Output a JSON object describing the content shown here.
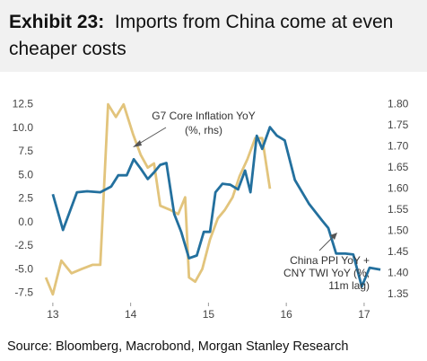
{
  "chart_data": {
    "type": "line",
    "title_label": "Exhibit 23:",
    "title": "Imports from China come at even cheaper costs",
    "source": "Source: Bloomberg, Macrobond, Morgan Stanley Research",
    "annotations": [
      {
        "lines": [
          "G7 Core Inflation YoY",
          "(%, rhs)"
        ]
      },
      {
        "lines": [
          "China PPI YoY +",
          "CNY TWI YoY (%,",
          "11m lag)"
        ]
      }
    ],
    "xlim": [
      12.84,
      17.22
    ],
    "xticks": [
      13,
      14,
      15,
      16,
      17
    ],
    "ylim": [
      -8.5,
      13.3
    ],
    "yticks": [
      12.5,
      {
        "value": 10,
        "label": "10.0"
      },
      7.5,
      {
        "value": 5,
        "label": "5.0"
      },
      2.5,
      {
        "value": 0,
        "label": "0.0"
      },
      -2.5,
      {
        "value": -5,
        "label": "-5.0"
      },
      -7.5
    ],
    "y2lim": [
      1.3305,
      1.8174
    ],
    "y2ticks": [
      {
        "value": 1.8,
        "label": "1.80"
      },
      {
        "value": 1.75,
        "label": "1.75"
      },
      {
        "value": 1.7,
        "label": "1.70"
      },
      {
        "value": 1.65,
        "label": "1.65"
      },
      {
        "value": 1.6,
        "label": "1.60"
      },
      {
        "value": 1.55,
        "label": "1.55"
      },
      {
        "value": 1.5,
        "label": "1.50"
      },
      {
        "value": 1.45,
        "label": "1.45"
      },
      {
        "value": 1.4,
        "label": "1.40"
      },
      {
        "value": 1.35,
        "label": "1.35"
      }
    ],
    "grid": false,
    "series": [
      {
        "name": "China PPI YoY + CNY TWI YoY (%, 11m lag)",
        "color": "#23709e",
        "axis": "y",
        "x": [
          13.0,
          13.13,
          13.31,
          13.44,
          13.61,
          13.75,
          13.84,
          13.95,
          14.04,
          14.13,
          14.22,
          14.3,
          14.38,
          14.46,
          14.56,
          14.65,
          14.75,
          14.85,
          14.94,
          15.02,
          15.09,
          15.18,
          15.28,
          15.38,
          15.47,
          15.54,
          15.62,
          15.69,
          15.79,
          15.88,
          15.98,
          16.11,
          16.29,
          16.46,
          16.54,
          16.64,
          16.76,
          16.86,
          16.97,
          17.07,
          17.21
        ],
        "values": [
          3.0,
          -0.8,
          3.2,
          3.3,
          3.2,
          3.8,
          5.0,
          5.0,
          6.7,
          5.7,
          4.6,
          5.3,
          6.1,
          6.3,
          0.9,
          -1.0,
          -3.8,
          -3.5,
          -1.0,
          -1.0,
          3.2,
          4.1,
          4.0,
          3.5,
          5.5,
          3.2,
          9.2,
          7.8,
          10.1,
          9.2,
          8.7,
          4.5,
          2.0,
          0.2,
          -0.6,
          -3.3,
          -3.3,
          -3.4,
          -6.8,
          -4.8,
          -5.0
        ]
      },
      {
        "name": "G7 Core Inflation YoY (%, rhs)",
        "color": "#e2c47c",
        "axis": "y2",
        "x": [
          12.91,
          13.0,
          13.11,
          13.24,
          13.37,
          13.51,
          13.61,
          13.71,
          13.81,
          13.91,
          14.03,
          14.13,
          14.22,
          14.3,
          14.38,
          14.51,
          14.61,
          14.7,
          14.75,
          14.83,
          14.92,
          15.02,
          15.12,
          15.21,
          15.31,
          15.4,
          15.5,
          15.6,
          15.69,
          15.79
        ],
        "values": [
          1.39,
          1.35,
          1.43,
          1.4,
          1.41,
          1.42,
          1.42,
          1.8,
          1.77,
          1.8,
          1.73,
          1.68,
          1.65,
          1.66,
          1.56,
          1.55,
          1.54,
          1.58,
          1.39,
          1.38,
          1.41,
          1.48,
          1.53,
          1.55,
          1.58,
          1.63,
          1.67,
          1.72,
          1.72,
          1.6
        ]
      }
    ]
  }
}
